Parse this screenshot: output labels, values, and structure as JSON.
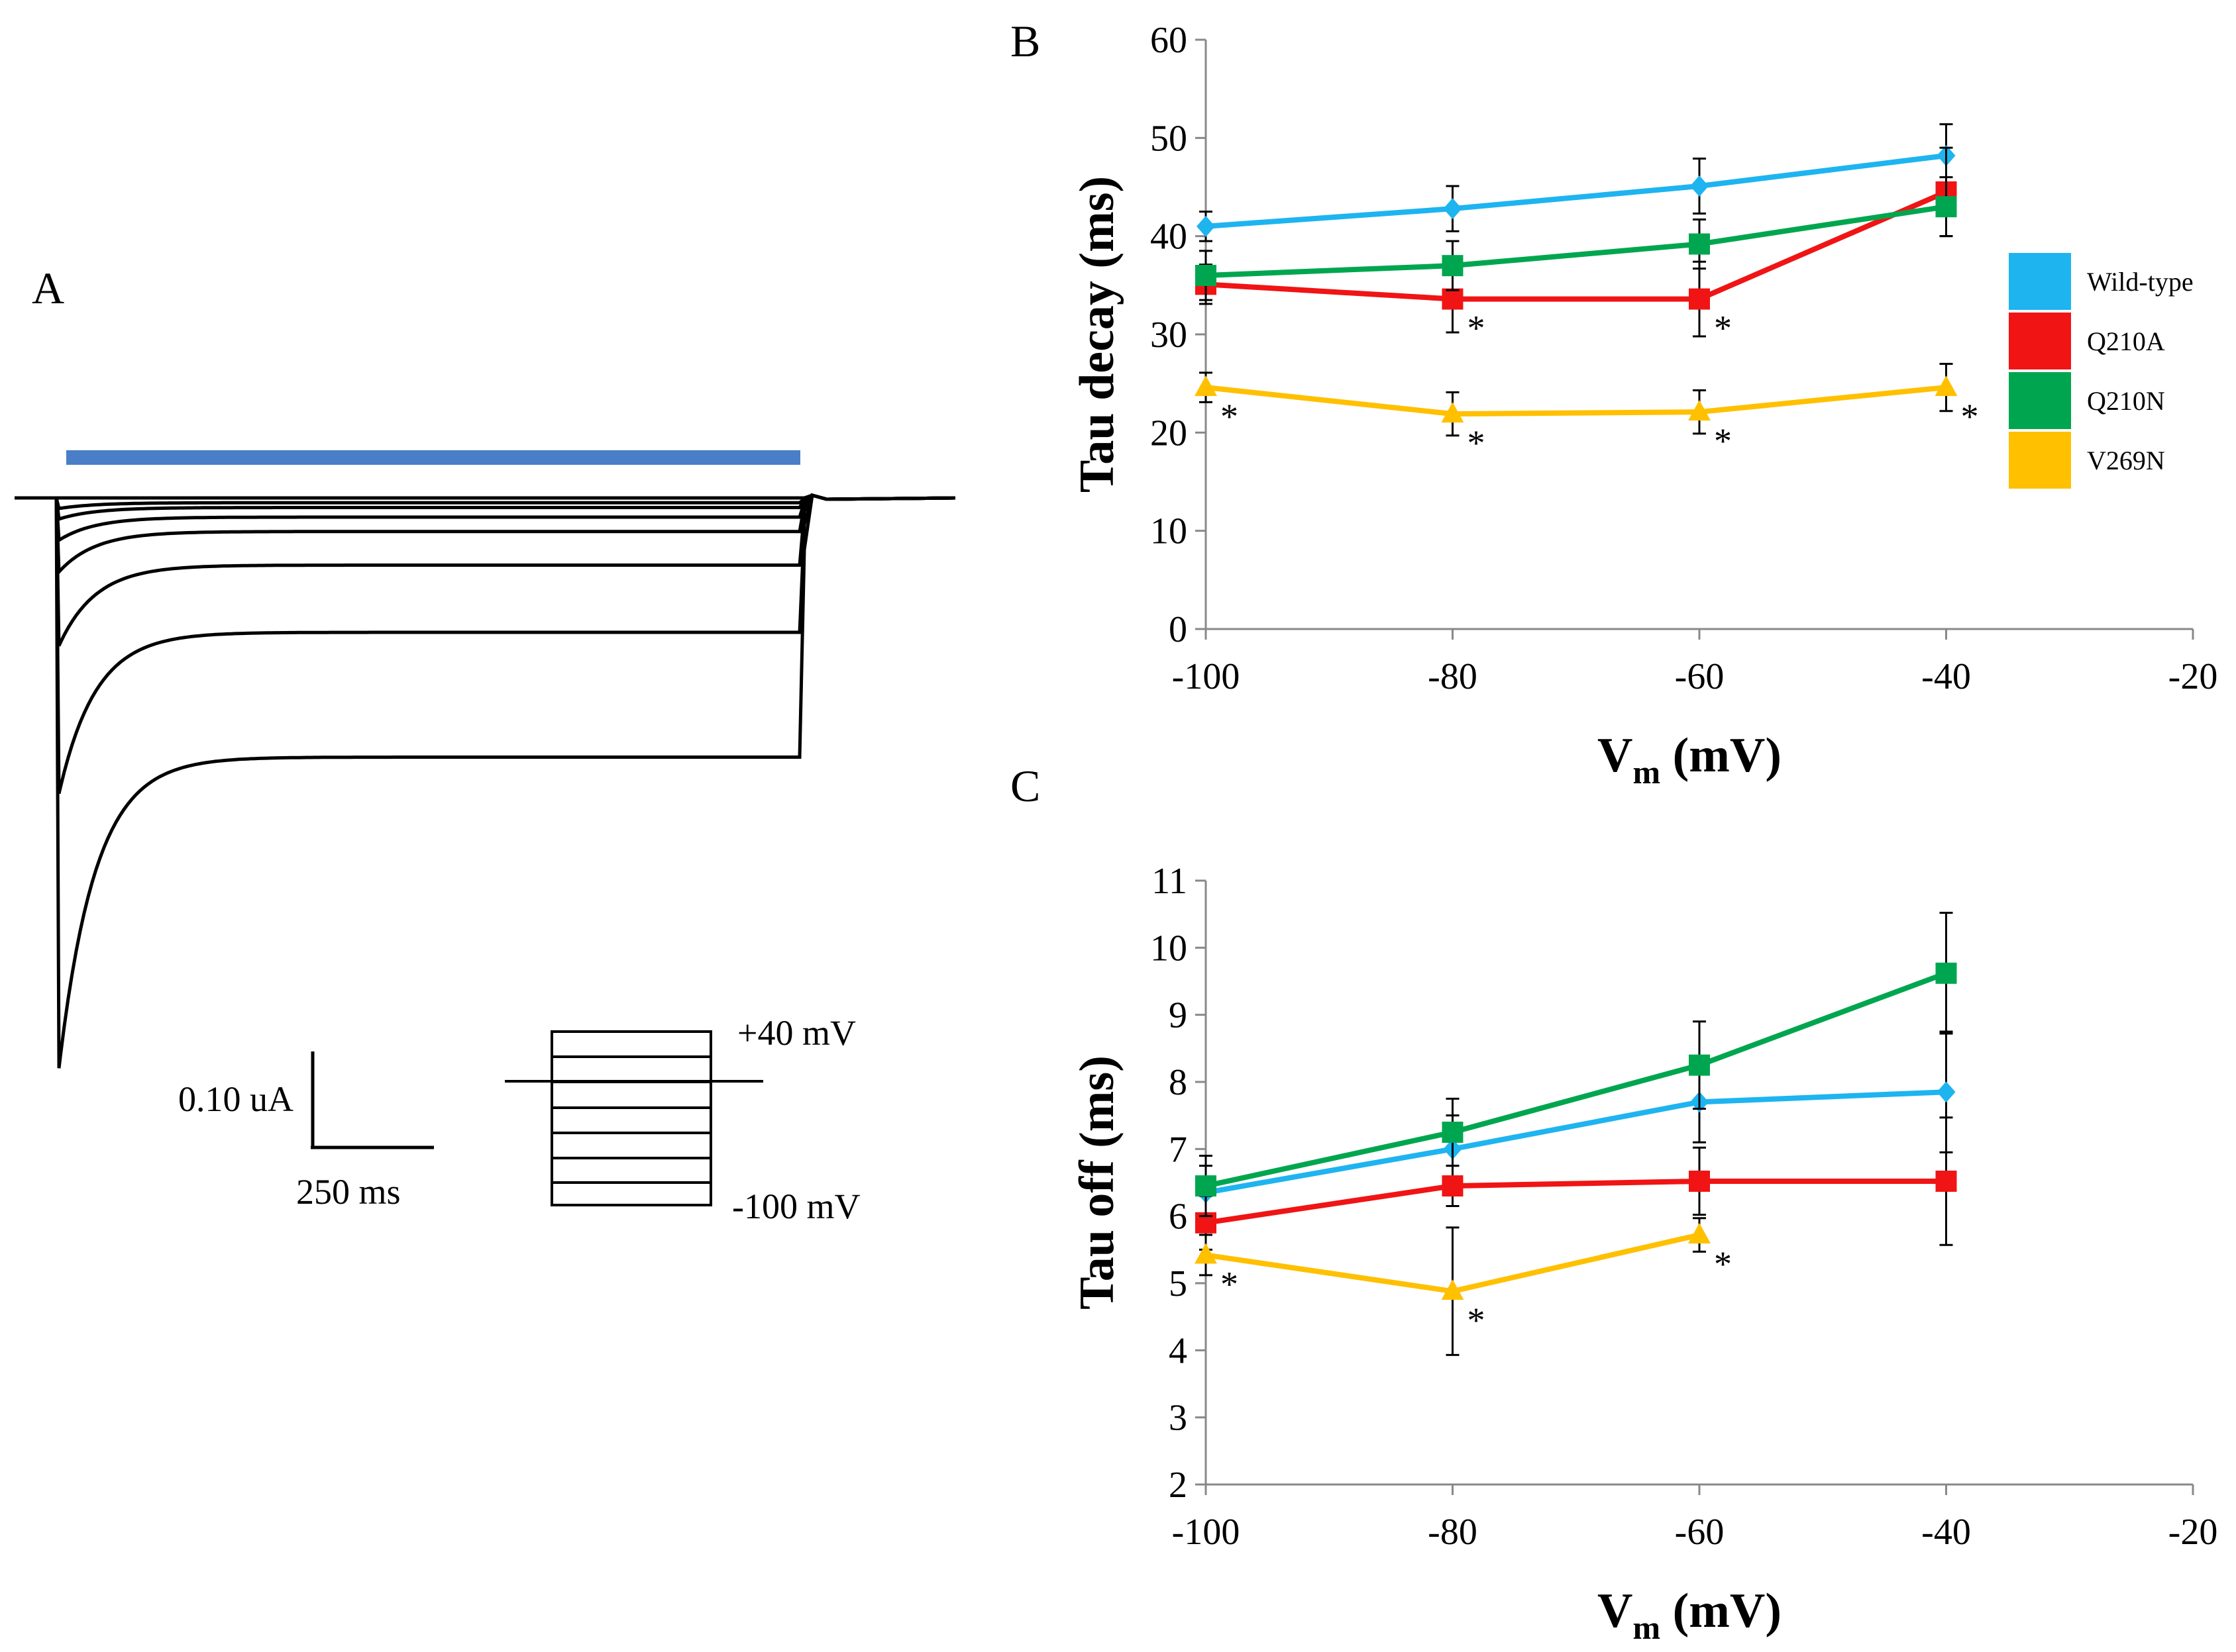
{
  "colors": {
    "wild_type": "#1EB4F0",
    "q210a": "#F01414",
    "q210n": "#00A64F",
    "v269n": "#FFC000",
    "stimulus_bar": "#4A7EC6",
    "axis": "#888888",
    "trace": "#000000"
  },
  "panel_a": {
    "label": "A",
    "scale_current": "0.10 uA",
    "scale_time": "250 ms",
    "protocol_top": "+40 mV",
    "protocol_bottom": "-100 mV",
    "traces": [
      {
        "step": "+40 mV",
        "plateau_uA": 0.0
      },
      {
        "step": "+20 mV",
        "plateau_uA": -0.005
      },
      {
        "step": "0 mV",
        "plateau_uA": -0.01
      },
      {
        "step": "-20 mV",
        "plateau_uA": -0.02
      },
      {
        "step": "-40 mV",
        "plateau_uA": -0.035
      },
      {
        "step": "-60 mV",
        "plateau_uA": -0.07
      },
      {
        "step": "-80 mV",
        "plateau_uA": -0.14
      },
      {
        "step": "-100 mV",
        "plateau_uA": -0.27
      }
    ]
  },
  "chart_data": [
    {
      "panel": "B",
      "type": "line",
      "title": "",
      "xlabel_main": "V",
      "xlabel_sub": "m",
      "xlabel_unit": "(mV)",
      "ylabel": "Tau decay (ms)",
      "xlim": [
        -100,
        -20
      ],
      "ylim": [
        0,
        60
      ],
      "xticks": [
        -100,
        -80,
        -60,
        -40,
        -20
      ],
      "yticks": [
        0,
        10,
        20,
        30,
        40,
        50,
        60
      ],
      "legend": [
        "Wild-type",
        "Q210A",
        "Q210N",
        "V269N"
      ],
      "series": [
        {
          "name": "Wild-type",
          "marker": "diamond",
          "x": [
            -100,
            -80,
            -60,
            -40
          ],
          "y": [
            41,
            42.8,
            45.1,
            48.2
          ],
          "err": [
            1.5,
            2.3,
            2.8,
            3.2
          ],
          "sig": [
            false,
            false,
            false,
            false
          ]
        },
        {
          "name": "Q210A",
          "marker": "square",
          "x": [
            -100,
            -80,
            -60,
            -40
          ],
          "y": [
            35.1,
            33.6,
            33.6,
            44.5
          ],
          "err": [
            2.0,
            3.4,
            3.8,
            4.5
          ],
          "sig": [
            false,
            true,
            true,
            false
          ]
        },
        {
          "name": "Q210N",
          "marker": "square",
          "x": [
            -100,
            -80,
            -60,
            -40
          ],
          "y": [
            36,
            37,
            39.2,
            43
          ],
          "err": [
            2.5,
            2.5,
            2.5,
            3.0
          ],
          "sig": [
            false,
            false,
            false,
            false
          ]
        },
        {
          "name": "V269N",
          "marker": "triangle",
          "x": [
            -100,
            -80,
            -60,
            -40
          ],
          "y": [
            24.6,
            21.9,
            22.1,
            24.6
          ],
          "err": [
            1.5,
            2.2,
            2.2,
            2.4
          ],
          "sig": [
            true,
            true,
            true,
            true
          ]
        }
      ],
      "significance_mark": "*"
    },
    {
      "panel": "C",
      "type": "line",
      "title": "",
      "xlabel_main": "V",
      "xlabel_sub": "m",
      "xlabel_unit": "(mV)",
      "ylabel": "Tau off (ms)",
      "xlim": [
        -100,
        -20
      ],
      "ylim": [
        2,
        11
      ],
      "xticks": [
        -100,
        -80,
        -60,
        -40,
        -20
      ],
      "yticks": [
        2,
        3,
        4,
        5,
        6,
        7,
        8,
        9,
        10,
        11
      ],
      "series": [
        {
          "name": "Wild-type",
          "marker": "diamond",
          "x": [
            -100,
            -80,
            -60,
            -40
          ],
          "y": [
            6.35,
            7.0,
            7.7,
            7.85
          ],
          "err": [
            0.4,
            0.5,
            0.6,
            0.9
          ],
          "sig": [
            false,
            false,
            false,
            false
          ]
        },
        {
          "name": "Q210A",
          "marker": "square",
          "x": [
            -100,
            -80,
            -60,
            -40
          ],
          "y": [
            5.9,
            6.45,
            6.52,
            6.52
          ],
          "err": [
            0.4,
            0.3,
            0.5,
            0.95
          ],
          "sig": [
            false,
            false,
            false,
            false
          ]
        },
        {
          "name": "Q210N",
          "marker": "square",
          "x": [
            -100,
            -80,
            -60,
            -40
          ],
          "y": [
            6.45,
            7.25,
            8.25,
            9.62
          ],
          "err": [
            0.45,
            0.5,
            0.65,
            0.9
          ],
          "sig": [
            false,
            false,
            false,
            false
          ]
        },
        {
          "name": "V269N",
          "marker": "triangle",
          "x": [
            -100,
            -80,
            -60
          ],
          "y": [
            5.42,
            4.88,
            5.72
          ],
          "err": [
            0.3,
            0.95,
            0.25
          ],
          "sig": [
            true,
            true,
            true
          ]
        }
      ],
      "significance_mark": "*"
    }
  ]
}
